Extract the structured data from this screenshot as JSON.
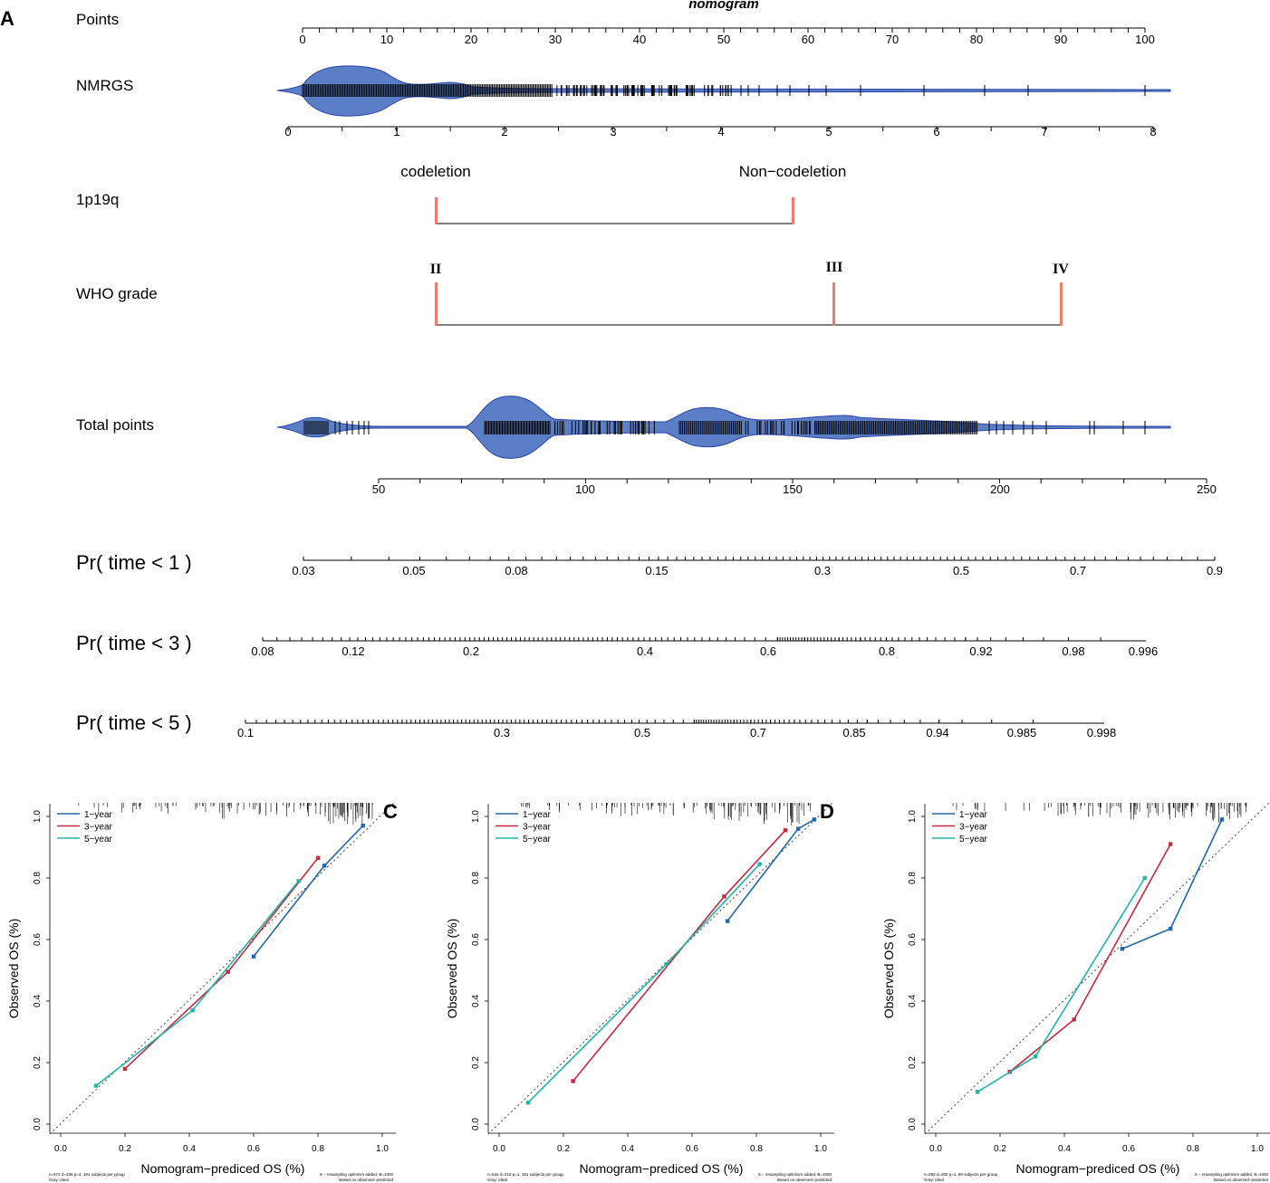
{
  "panel_a": {
    "letter": "A",
    "title": "nomogram",
    "rows": {
      "points": "Points",
      "nmrgs": "NMRGS",
      "p1p19q": "1p19q",
      "who": "WHO grade",
      "total": "Total points",
      "pr1": "Pr( time < 1 )",
      "pr3": "Pr( time < 3 )",
      "pr5": "Pr( time < 5 )"
    },
    "points_ticks": [
      "0",
      "10",
      "20",
      "30",
      "40",
      "50",
      "60",
      "70",
      "80",
      "90",
      "100"
    ],
    "nmrgs_ticks": [
      "0",
      "1",
      "2",
      "3",
      "4",
      "5",
      "6",
      "7",
      "8"
    ],
    "p1p19q_levels": [
      "codeletion",
      "Non−codeletion"
    ],
    "who_levels": [
      "II",
      "III",
      "IV"
    ],
    "total_ticks": [
      "50",
      "100",
      "150",
      "200",
      "250"
    ],
    "pr1_ticks": [
      "0.03",
      "0.05",
      "0.08",
      "0.15",
      "0.3",
      "0.5",
      "0.7",
      "0.9"
    ],
    "pr3_ticks": [
      "0.08",
      "0.12",
      "0.2",
      "0.4",
      "0.6",
      "0.8",
      "0.92",
      "0.98",
      "0.996"
    ],
    "pr5_ticks": [
      "0.1",
      "0.3",
      "0.5",
      "0.7",
      "0.85",
      "0.94",
      "0.985",
      "0.998"
    ]
  },
  "colors": {
    "violin_fill": "#5b7fc7",
    "violin_edge": "#2b45a8",
    "level_bar": "#f07b6c",
    "y1": "#2166ac",
    "y3": "#c9283e",
    "y5": "#1fb5a8"
  },
  "chart_data": [
    {
      "id": "B",
      "type": "line",
      "title": "",
      "xlabel": "Nomogram−prediced OS (%)",
      "ylabel": "Observed OS (%)",
      "xlim": [
        0,
        1
      ],
      "ylim": [
        0,
        1
      ],
      "ticks": [
        "0.0",
        "0.2",
        "0.4",
        "0.6",
        "0.8",
        "1.0"
      ],
      "legend": [
        "1−year",
        "3−year",
        "5−year"
      ],
      "series": [
        {
          "name": "1−year",
          "x": [
            0.6,
            0.82,
            0.94
          ],
          "y": [
            0.545,
            0.84,
            0.97
          ]
        },
        {
          "name": "3−year",
          "x": [
            0.2,
            0.52,
            0.8
          ],
          "y": [
            0.18,
            0.495,
            0.865
          ]
        },
        {
          "name": "5−year",
          "x": [
            0.11,
            0.41,
            0.74
          ],
          "y": [
            0.125,
            0.37,
            0.79
          ]
        }
      ],
      "note_left": [
        "n=574 d=336 p=4, 191 subjects per group",
        "Gray: ideal"
      ],
      "note_right": [
        "X − resampling optimism added, B=1000",
        "Based on observed−predicted"
      ]
    },
    {
      "id": "C",
      "type": "line",
      "title": "",
      "xlabel": "Nomogram−prediced OS (%)",
      "ylabel": "Observed OS (%)",
      "xlim": [
        0,
        1
      ],
      "ylim": [
        0,
        1
      ],
      "ticks": [
        "0.0",
        "0.2",
        "0.4",
        "0.6",
        "0.8",
        "1.0"
      ],
      "legend": [
        "1−year",
        "3−year",
        "5−year"
      ],
      "series": [
        {
          "name": "1−year",
          "x": [
            0.71,
            0.93,
            0.98
          ],
          "y": [
            0.66,
            0.96,
            0.99
          ]
        },
        {
          "name": "3−year",
          "x": [
            0.23,
            0.7,
            0.89
          ],
          "y": [
            0.14,
            0.74,
            0.955
          ]
        },
        {
          "name": "5−year",
          "x": [
            0.09,
            0.52,
            0.81
          ],
          "y": [
            0.07,
            0.52,
            0.845
          ]
        }
      ],
      "note_left": [
        "n=544 d=218 p=1, 181 subjects per group",
        "Gray: ideal"
      ],
      "note_right": [
        "X − resampling optimism added, B=1000",
        "Based on observed−predicted"
      ]
    },
    {
      "id": "D",
      "type": "line",
      "title": "",
      "xlabel": "Nomogram−prediced OS (%)",
      "ylabel": "Observed OS (%)",
      "xlim": [
        0,
        1
      ],
      "ylim": [
        0,
        1
      ],
      "ticks": [
        "0.0",
        "0.2",
        "0.4",
        "0.6",
        "0.8",
        "1.0"
      ],
      "legend": [
        "1−year",
        "3−year",
        "5−year"
      ],
      "series": [
        {
          "name": "1−year",
          "x": [
            0.58,
            0.73,
            0.89
          ],
          "y": [
            0.57,
            0.635,
            0.99
          ]
        },
        {
          "name": "3−year",
          "x": [
            0.23,
            0.43,
            0.73
          ],
          "y": [
            0.17,
            0.34,
            0.91
          ]
        },
        {
          "name": "5−year",
          "x": [
            0.13,
            0.31,
            0.65
          ],
          "y": [
            0.105,
            0.22,
            0.8
          ]
        }
      ],
      "note_left": [
        "n=293 d=200 p=1, 90 subjects per group",
        "Gray: ideal"
      ],
      "note_right": [
        "X − resampling optimism added, B=1000",
        "Based on observed−predicted"
      ]
    }
  ]
}
